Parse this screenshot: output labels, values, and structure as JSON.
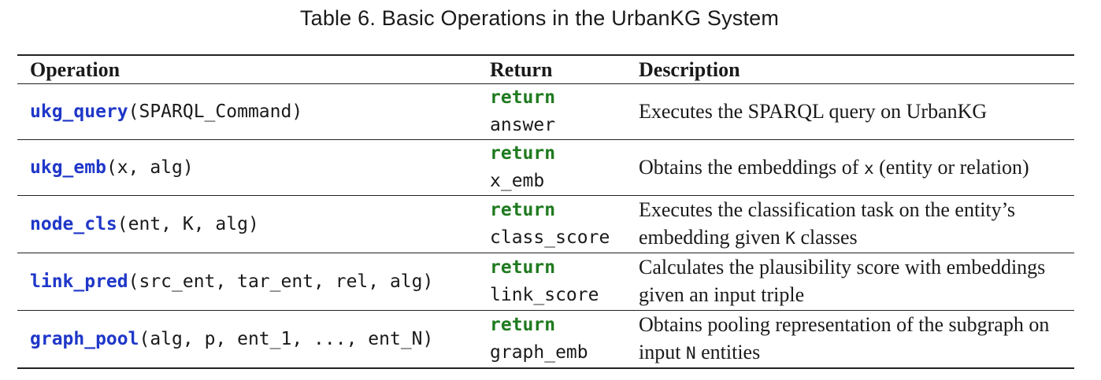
{
  "caption": "Table 6.  Basic Operations in the UrbanKG System",
  "headers": {
    "operation": "Operation",
    "return": "Return",
    "description": "Description"
  },
  "rows": [
    {
      "fn": "ukg_query",
      "args": "(SPARQL_Command)",
      "ret_kw": "return",
      "ret_var": "answer",
      "desc_a": "Executes the SPARQL query on UrbanKG",
      "desc_code": "",
      "desc_b": ""
    },
    {
      "fn": "ukg_emb",
      "args": "(x, alg)",
      "ret_kw": "return",
      "ret_var": "x_emb",
      "desc_a": "Obtains the embeddings of ",
      "desc_code": "x",
      "desc_b": " (entity or relation)"
    },
    {
      "fn": "node_cls",
      "args": "(ent, K, alg)",
      "ret_kw": "return",
      "ret_var": "class_score",
      "desc_a": "Executes the classification task on the entity’s embedding given ",
      "desc_code": "K",
      "desc_b": " classes"
    },
    {
      "fn": "link_pred",
      "args": "(src_ent, tar_ent, rel, alg)",
      "ret_kw": "return",
      "ret_var": "link_score",
      "desc_a": "Calculates the plausibility score with embeddings given an input triple",
      "desc_code": "",
      "desc_b": ""
    },
    {
      "fn": "graph_pool",
      "args": "(alg, p, ent_1, ..., ent_N)",
      "ret_kw": "return",
      "ret_var": "graph_emb",
      "desc_a": "Obtains pooling representation of the subgraph on input ",
      "desc_code": "N",
      "desc_b": " entities"
    }
  ]
}
